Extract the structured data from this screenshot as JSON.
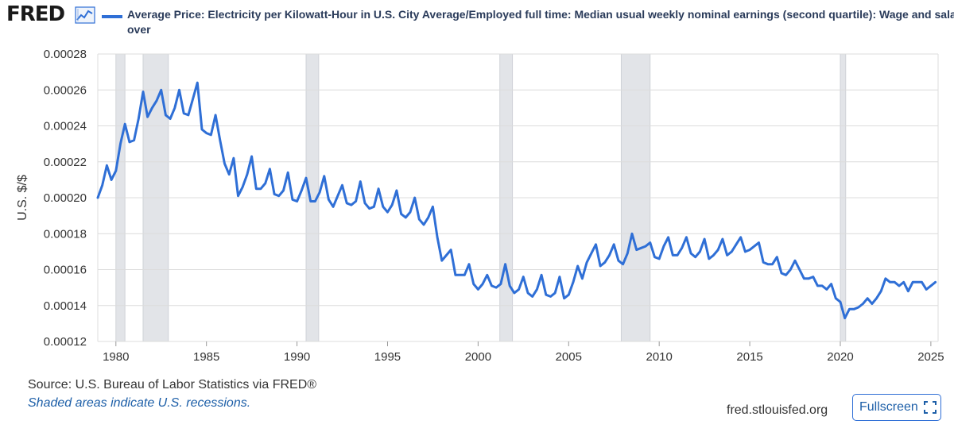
{
  "header": {
    "logo_text": "FRED",
    "logo_icon": "trend-line-icon",
    "legend_line1": "Average Price: Electricity per Kilowatt-Hour in U.S. City Average/Employed full time: Median usual weekly nominal earnings (second quartile): Wage and salar",
    "legend_line2": "over"
  },
  "footer": {
    "source": "Source: U.S. Bureau of Labor Statistics via FRED®",
    "note": "Shaded areas indicate U.S. recessions.",
    "site": "fred.stlouisfed.org",
    "fullscreen_label": "Fullscreen",
    "fullscreen_icon": "fullscreen-icon"
  },
  "colors": {
    "series": "#2f6fd6",
    "recession": "#e2e4e8",
    "grid": "#dcdcdc"
  },
  "chart_data": {
    "type": "line",
    "title": "Average Price: Electricity per Kilowatt-Hour in U.S. City Average/Employed full time: Median usual weekly nominal earnings (second quartile): Wage and salary over",
    "xlabel": "",
    "ylabel": "U.S. $/$",
    "xlim": [
      1979.0,
      2025.4
    ],
    "ylim": [
      0.00012,
      0.00028
    ],
    "y_ticks": [
      0.00012,
      0.00014,
      0.00016,
      0.00018,
      0.0002,
      0.00022,
      0.00024,
      0.00026,
      0.00028
    ],
    "y_tick_labels": [
      "0.00012",
      "0.00014",
      "0.00016",
      "0.00018",
      "0.00020",
      "0.00022",
      "0.00024",
      "0.00026",
      "0.00028"
    ],
    "x_ticks": [
      1980,
      1985,
      1990,
      1995,
      2000,
      2005,
      2010,
      2015,
      2020,
      2025
    ],
    "x_tick_labels": [
      "1980",
      "1985",
      "1990",
      "1995",
      "2000",
      "2005",
      "2010",
      "2015",
      "2020",
      "2025"
    ],
    "grid": true,
    "recessions": [
      [
        1980.0,
        1980.5
      ],
      [
        1981.5,
        1982.9
      ],
      [
        1990.5,
        1991.2
      ],
      [
        2001.2,
        2001.9
      ],
      [
        2007.9,
        2009.5
      ],
      [
        2020.0,
        2020.3
      ]
    ],
    "series": [
      {
        "name": "Average Price: Electricity per Kilowatt-Hour in U.S. City Average/Employed full time: Median usual weekly nominal earnings (second quartile): Wage and salary over",
        "x": [
          1979.0,
          1979.25,
          1979.5,
          1979.75,
          1980.0,
          1980.25,
          1980.5,
          1980.75,
          1981.0,
          1981.25,
          1981.5,
          1981.75,
          1982.0,
          1982.25,
          1982.5,
          1982.75,
          1983.0,
          1983.25,
          1983.5,
          1983.75,
          1984.0,
          1984.25,
          1984.5,
          1984.75,
          1985.0,
          1985.25,
          1985.5,
          1985.75,
          1986.0,
          1986.25,
          1986.5,
          1986.75,
          1987.0,
          1987.25,
          1987.5,
          1987.75,
          1988.0,
          1988.25,
          1988.5,
          1988.75,
          1989.0,
          1989.25,
          1989.5,
          1989.75,
          1990.0,
          1990.25,
          1990.5,
          1990.75,
          1991.0,
          1991.25,
          1991.5,
          1991.75,
          1992.0,
          1992.25,
          1992.5,
          1992.75,
          1993.0,
          1993.25,
          1993.5,
          1993.75,
          1994.0,
          1994.25,
          1994.5,
          1994.75,
          1995.0,
          1995.25,
          1995.5,
          1995.75,
          1996.0,
          1996.25,
          1996.5,
          1996.75,
          1997.0,
          1997.25,
          1997.5,
          1997.75,
          1998.0,
          1998.25,
          1998.5,
          1998.75,
          1999.0,
          1999.25,
          1999.5,
          1999.75,
          2000.0,
          2000.25,
          2000.5,
          2000.75,
          2001.0,
          2001.25,
          2001.5,
          2001.75,
          2002.0,
          2002.25,
          2002.5,
          2002.75,
          2003.0,
          2003.25,
          2003.5,
          2003.75,
          2004.0,
          2004.25,
          2004.5,
          2004.75,
          2005.0,
          2005.25,
          2005.5,
          2005.75,
          2006.0,
          2006.25,
          2006.5,
          2006.75,
          2007.0,
          2007.25,
          2007.5,
          2007.75,
          2008.0,
          2008.25,
          2008.5,
          2008.75,
          2009.0,
          2009.25,
          2009.5,
          2009.75,
          2010.0,
          2010.25,
          2010.5,
          2010.75,
          2011.0,
          2011.25,
          2011.5,
          2011.75,
          2012.0,
          2012.25,
          2012.5,
          2012.75,
          2013.0,
          2013.25,
          2013.5,
          2013.75,
          2014.0,
          2014.25,
          2014.5,
          2014.75,
          2015.0,
          2015.25,
          2015.5,
          2015.75,
          2016.0,
          2016.25,
          2016.5,
          2016.75,
          2017.0,
          2017.25,
          2017.5,
          2017.75,
          2018.0,
          2018.25,
          2018.5,
          2018.75,
          2019.0,
          2019.25,
          2019.5,
          2019.75,
          2020.0,
          2020.25,
          2020.5,
          2020.75,
          2021.0,
          2021.25,
          2021.5,
          2021.75,
          2022.0,
          2022.25,
          2022.5,
          2022.75,
          2023.0,
          2023.25,
          2023.5,
          2023.75,
          2024.0,
          2024.25,
          2024.5,
          2024.75,
          2025.0,
          2025.25
        ],
        "values": [
          0.0002,
          0.000207,
          0.000218,
          0.00021,
          0.000215,
          0.00023,
          0.000241,
          0.000231,
          0.000232,
          0.000244,
          0.000259,
          0.000245,
          0.00025,
          0.000254,
          0.00026,
          0.000246,
          0.000244,
          0.00025,
          0.00026,
          0.000247,
          0.000246,
          0.000255,
          0.000264,
          0.000238,
          0.000236,
          0.000235,
          0.000246,
          0.000232,
          0.000219,
          0.000213,
          0.000222,
          0.000201,
          0.000206,
          0.000213,
          0.000223,
          0.000205,
          0.000205,
          0.000208,
          0.000216,
          0.000202,
          0.000201,
          0.000204,
          0.000214,
          0.000199,
          0.000198,
          0.000204,
          0.000211,
          0.000198,
          0.000198,
          0.000203,
          0.000212,
          0.000199,
          0.000195,
          0.000201,
          0.000207,
          0.000197,
          0.000196,
          0.000198,
          0.000209,
          0.000197,
          0.000194,
          0.000195,
          0.000205,
          0.000195,
          0.000192,
          0.000196,
          0.000204,
          0.000191,
          0.000189,
          0.000192,
          0.0002,
          0.000188,
          0.000185,
          0.000189,
          0.000195,
          0.000178,
          0.000165,
          0.000168,
          0.000171,
          0.000157,
          0.000157,
          0.000157,
          0.000163,
          0.000152,
          0.000149,
          0.000152,
          0.000157,
          0.000151,
          0.00015,
          0.000152,
          0.000163,
          0.000151,
          0.000147,
          0.000149,
          0.000156,
          0.000147,
          0.000145,
          0.000149,
          0.000157,
          0.000146,
          0.000145,
          0.000147,
          0.000156,
          0.000144,
          0.000146,
          0.000153,
          0.000162,
          0.000155,
          0.000164,
          0.000169,
          0.000174,
          0.000162,
          0.000164,
          0.000168,
          0.000174,
          0.000165,
          0.000163,
          0.000169,
          0.00018,
          0.000171,
          0.000172,
          0.000173,
          0.000175,
          0.000167,
          0.000166,
          0.000173,
          0.000178,
          0.000168,
          0.000168,
          0.000172,
          0.000178,
          0.000169,
          0.000167,
          0.00017,
          0.000177,
          0.000166,
          0.000168,
          0.000171,
          0.000177,
          0.000168,
          0.00017,
          0.000174,
          0.000178,
          0.00017,
          0.000171,
          0.000173,
          0.000175,
          0.000164,
          0.000163,
          0.000163,
          0.000167,
          0.000158,
          0.000157,
          0.00016,
          0.000165,
          0.00016,
          0.000155,
          0.000155,
          0.000156,
          0.000151,
          0.000151,
          0.000149,
          0.000152,
          0.000144,
          0.000142,
          0.000133,
          0.000138,
          0.000138,
          0.000139,
          0.000141,
          0.000144,
          0.000141,
          0.000144,
          0.000148,
          0.000155,
          0.000153,
          0.000153,
          0.000151,
          0.000153,
          0.000148,
          0.000153,
          0.000153,
          0.000153,
          0.000149,
          0.000151,
          0.000153
        ]
      }
    ]
  }
}
